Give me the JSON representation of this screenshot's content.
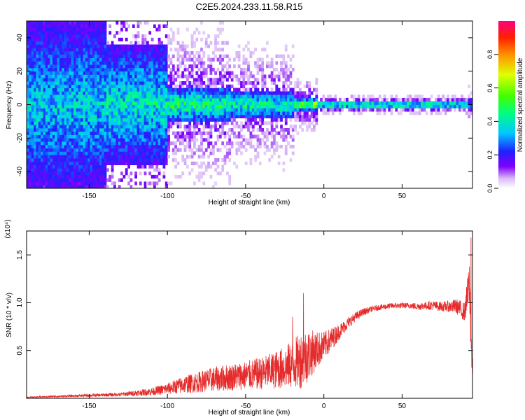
{
  "title": "C2E5.2024.233.11.58.R15",
  "colors": {
    "line": "#e52b2b",
    "background": "#ffffff"
  },
  "chart_data": [
    {
      "type": "heatmap",
      "xlabel": "Height of straight line (km)",
      "ylabel": "Frequency (Hz)",
      "xlim": [
        -190,
        95
      ],
      "ylim": [
        -50,
        50
      ],
      "xticks": [
        "-150",
        "-100",
        "-50",
        "0",
        "50"
      ],
      "xtick_values": [
        -150,
        -100,
        -50,
        0,
        50
      ],
      "yticks": [
        "40",
        "20",
        "0",
        "-20",
        "-40"
      ],
      "ytick_values": [
        40,
        20,
        0,
        -20,
        -40
      ],
      "colorbar": {
        "label": "Normalized spectral amplitude",
        "range": [
          0,
          1
        ],
        "ticks": [
          "0.0",
          "0.2",
          "0.4",
          "0.6",
          "0.8"
        ],
        "tick_values": [
          0,
          0.2,
          0.4,
          0.6,
          0.8
        ],
        "colormap": "rainbow"
      },
      "bands": [
        {
          "x_start": -190,
          "x_end": -140,
          "freq_spread": 50,
          "peak_amplitude": 0.45,
          "density": 0.55
        },
        {
          "x_start": -140,
          "x_end": -100,
          "freq_spread": 35,
          "peak_amplitude": 0.5,
          "density": 0.45
        },
        {
          "x_start": -100,
          "x_end": -60,
          "freq_spread": 10,
          "peak_amplitude": 0.6,
          "density": 0.8
        },
        {
          "x_start": -60,
          "x_end": -20,
          "freq_spread": 8,
          "peak_amplitude": 0.55,
          "density": 0.85
        },
        {
          "x_start": -20,
          "x_end": -5,
          "freq_spread": 3,
          "peak_amplitude": 0.8,
          "density": 0.9
        },
        {
          "x_start": -5,
          "x_end": 92,
          "freq_spread": 1,
          "peak_amplitude": 1.0,
          "density": 1.0
        },
        {
          "x_start": 92,
          "x_end": 95,
          "freq_spread": 3,
          "peak_amplitude": 0.4,
          "density": 0.8
        }
      ]
    },
    {
      "type": "line",
      "xlabel": "Height of straight line (km)",
      "ylabel": "SNR (10 * v/v)",
      "scale_note": "(x10⁴)",
      "xlim": [
        -190,
        95
      ],
      "ylim": [
        0,
        1.75
      ],
      "xticks": [
        "-150",
        "-100",
        "-50",
        "0",
        "50"
      ],
      "xtick_values": [
        -150,
        -100,
        -50,
        0,
        50
      ],
      "yticks": [
        "0.5",
        "1.0",
        "1.5"
      ],
      "ytick_values": [
        0.5,
        1.0,
        1.5
      ],
      "series": [
        {
          "x": [
            -190,
            -170,
            -150,
            -130,
            -110,
            -100,
            -90,
            -80,
            -70,
            -60,
            -50,
            -40,
            -30,
            -20,
            -15,
            -10,
            -5,
            0,
            5,
            10,
            15,
            20,
            25,
            30,
            35,
            40,
            45,
            50,
            55,
            60,
            65,
            70,
            75,
            80,
            85,
            90,
            93,
            95
          ],
          "y": [
            0.01,
            0.02,
            0.03,
            0.04,
            0.07,
            0.1,
            0.14,
            0.17,
            0.2,
            0.22,
            0.24,
            0.26,
            0.3,
            0.35,
            0.4,
            0.45,
            0.5,
            0.55,
            0.62,
            0.7,
            0.78,
            0.85,
            0.9,
            0.93,
            0.95,
            0.96,
            0.97,
            0.97,
            0.97,
            0.96,
            0.97,
            0.97,
            0.96,
            0.96,
            0.96,
            0.9,
            1.2,
            0.2
          ],
          "noise": [
            0.005,
            0.01,
            0.015,
            0.02,
            0.04,
            0.06,
            0.09,
            0.11,
            0.13,
            0.14,
            0.15,
            0.17,
            0.2,
            0.25,
            0.3,
            0.28,
            0.2,
            0.15,
            0.12,
            0.08,
            0.06,
            0.05,
            0.04,
            0.03,
            0.03,
            0.03,
            0.03,
            0.03,
            0.03,
            0.04,
            0.04,
            0.05,
            0.05,
            0.06,
            0.08,
            0.1,
            0.25,
            0.2
          ]
        }
      ],
      "peaks": [
        {
          "x": -13,
          "y": 1.1
        },
        {
          "x": -20,
          "y": 0.85
        },
        {
          "x": 94,
          "y": 1.68
        }
      ]
    }
  ]
}
